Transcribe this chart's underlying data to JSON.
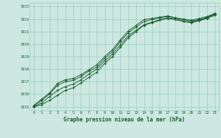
{
  "title": "Graphe pression niveau de la mer (hPa)",
  "bg_color": "#cce8e0",
  "plot_bg_color": "#cce8e0",
  "grid_color": "#99ccbb",
  "line_color": "#1a5c30",
  "xlim": [
    -0.5,
    23.5
  ],
  "ylim": [
    1014.7,
    1023.3
  ],
  "xticks": [
    0,
    1,
    2,
    3,
    4,
    5,
    6,
    7,
    8,
    9,
    10,
    11,
    12,
    13,
    14,
    15,
    16,
    17,
    18,
    19,
    20,
    21,
    22,
    23
  ],
  "yticks": [
    1015,
    1016,
    1017,
    1018,
    1019,
    1020,
    1021,
    1022,
    1023
  ],
  "series": [
    [
      1015.1,
      1015.6,
      1016.1,
      1016.85,
      1017.15,
      1017.25,
      1017.55,
      1017.95,
      1018.35,
      1019.0,
      1019.55,
      1020.35,
      1021.05,
      1021.5,
      1021.95,
      1022.05,
      1022.15,
      1022.25,
      1022.1,
      1022.0,
      1021.9,
      1022.05,
      1022.2,
      1022.45
    ],
    [
      1015.05,
      1015.5,
      1016.0,
      1016.7,
      1017.0,
      1017.1,
      1017.4,
      1017.85,
      1018.15,
      1018.85,
      1019.4,
      1020.2,
      1020.9,
      1021.35,
      1021.8,
      1021.95,
      1022.1,
      1022.2,
      1022.08,
      1021.95,
      1021.85,
      1021.95,
      1022.15,
      1022.4
    ],
    [
      1015.0,
      1015.3,
      1015.8,
      1016.3,
      1016.6,
      1016.8,
      1017.15,
      1017.6,
      1018.0,
      1018.65,
      1019.2,
      1019.95,
      1020.65,
      1021.1,
      1021.55,
      1021.75,
      1021.95,
      1022.1,
      1022.0,
      1021.85,
      1021.75,
      1021.9,
      1022.1,
      1022.35
    ],
    [
      1015.0,
      1015.15,
      1015.5,
      1015.9,
      1016.3,
      1016.5,
      1016.9,
      1017.35,
      1017.75,
      1018.45,
      1019.0,
      1019.75,
      1020.5,
      1021.0,
      1021.5,
      1021.7,
      1021.9,
      1022.05,
      1021.95,
      1021.8,
      1021.7,
      1021.85,
      1022.05,
      1022.3
    ]
  ]
}
